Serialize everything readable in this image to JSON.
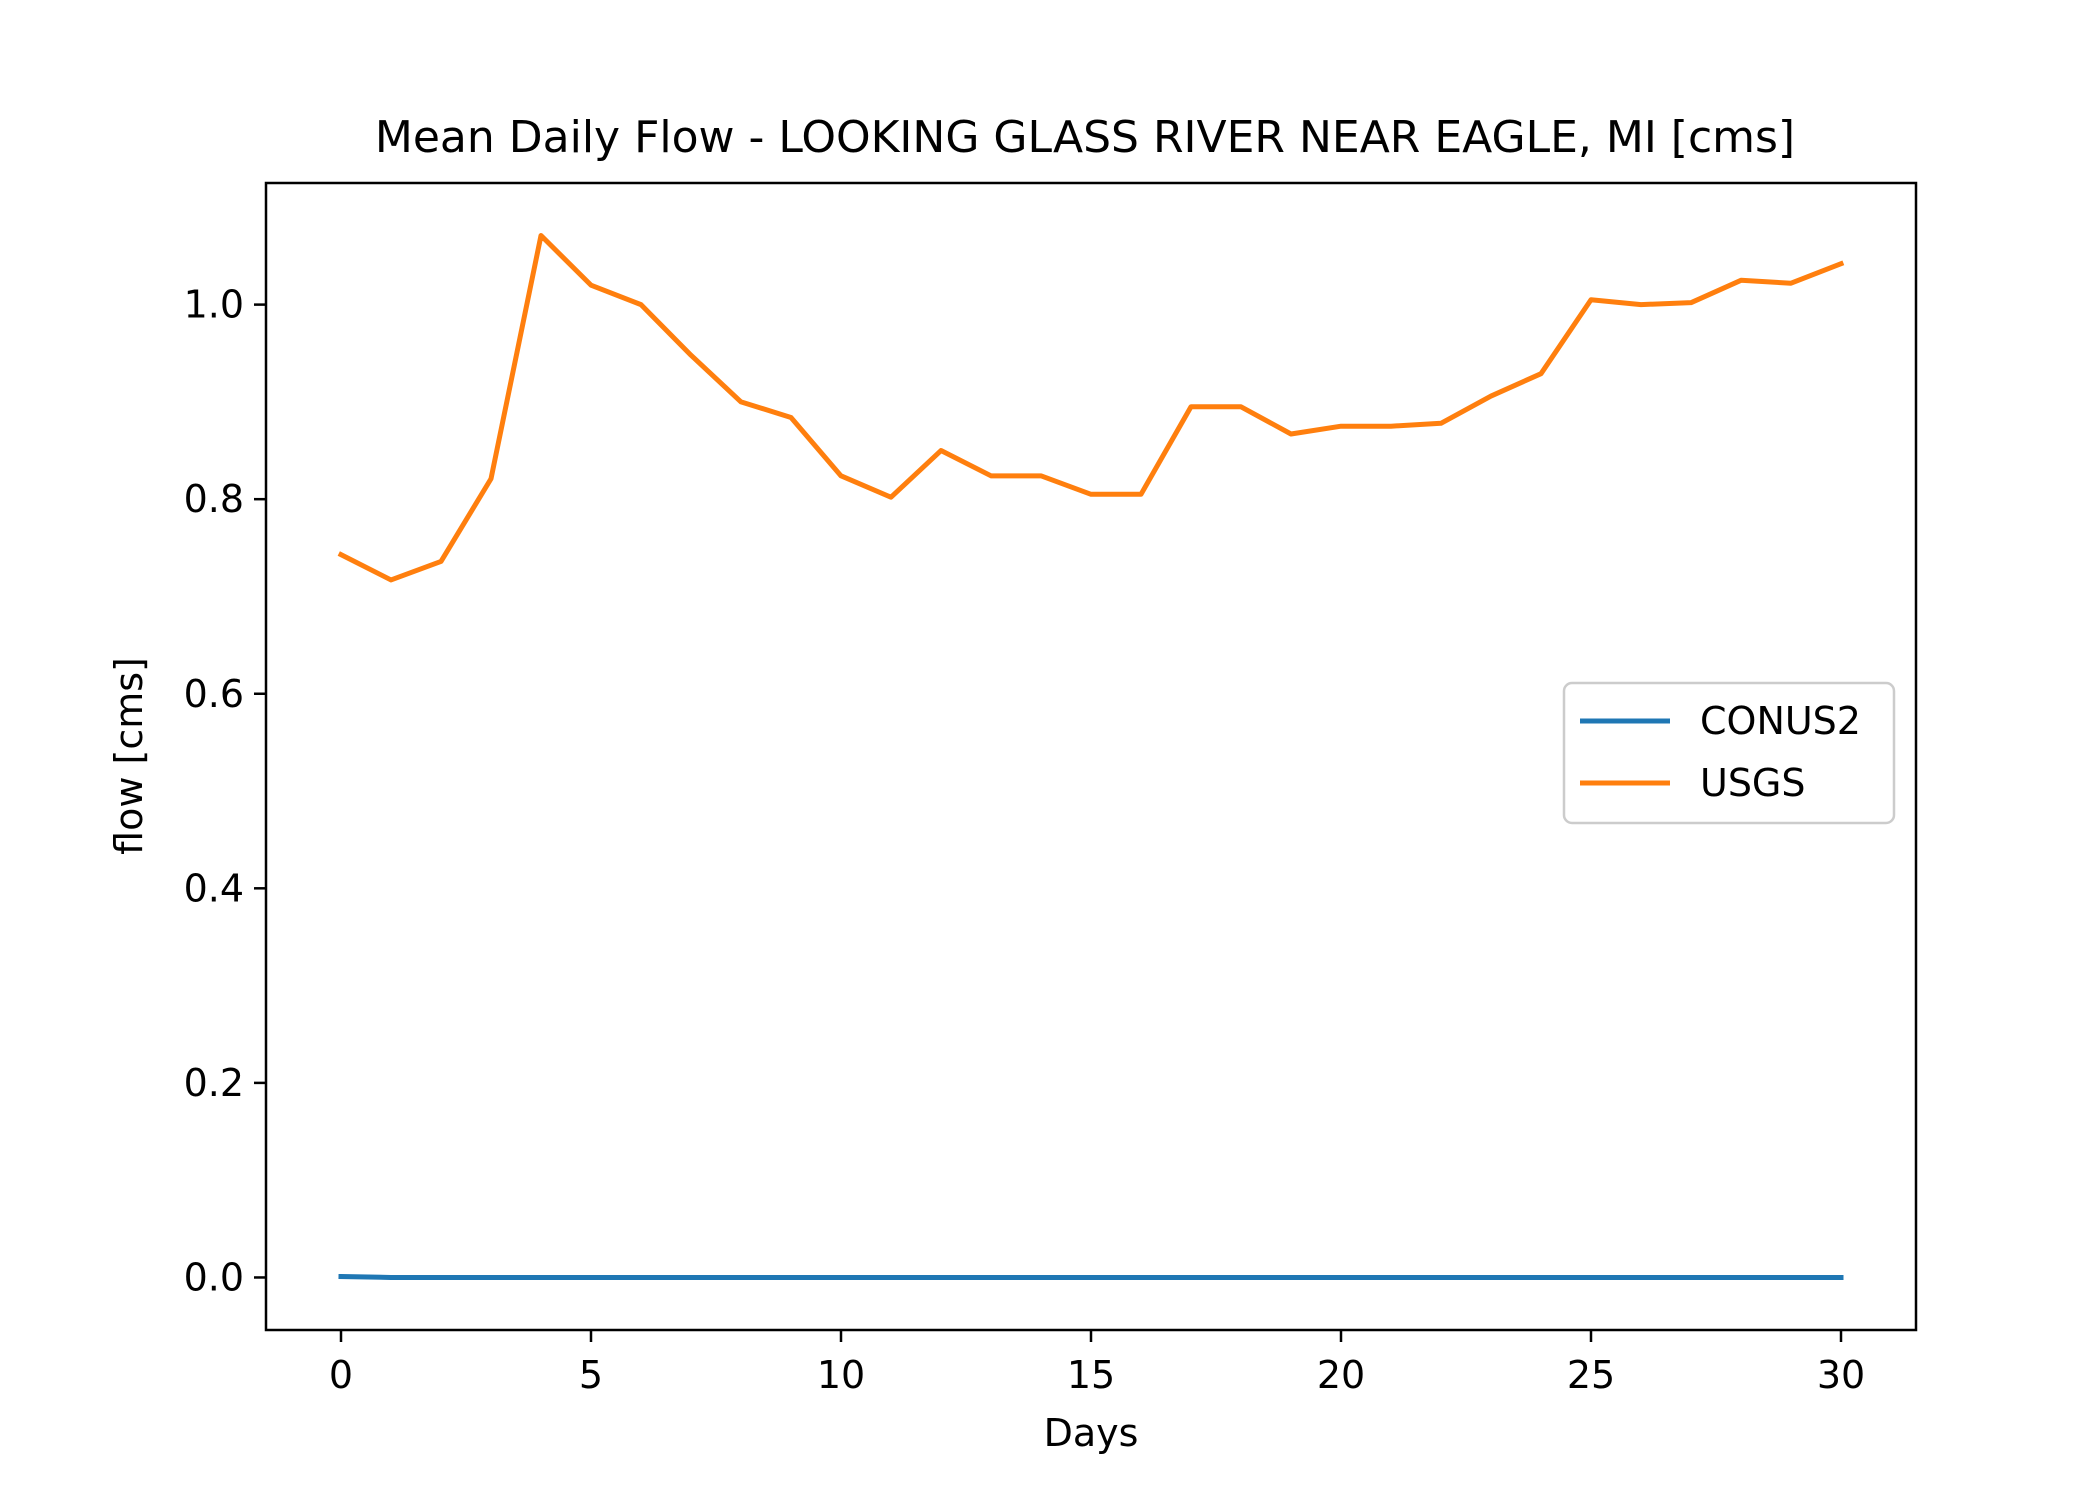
{
  "chart_data": {
    "type": "line",
    "title": "Mean Daily Flow - LOOKING GLASS RIVER NEAR EAGLE, MI [cms]",
    "xlabel": "Days",
    "ylabel": "flow [cms]",
    "xlim": [
      -1.5,
      31.5
    ],
    "ylim": [
      -0.054,
      1.125
    ],
    "xticks": [
      0,
      5,
      10,
      15,
      20,
      25,
      30
    ],
    "xtick_labels": [
      "0",
      "5",
      "10",
      "15",
      "20",
      "25",
      "30"
    ],
    "yticks": [
      0.0,
      0.2,
      0.4,
      0.6,
      0.8,
      1.0
    ],
    "ytick_labels": [
      "0.0",
      "0.2",
      "0.4",
      "0.6",
      "0.8",
      "1.0"
    ],
    "grid": false,
    "legend_position": "center-right",
    "x": [
      0,
      1,
      2,
      3,
      4,
      5,
      6,
      7,
      8,
      9,
      10,
      11,
      12,
      13,
      14,
      15,
      16,
      17,
      18,
      19,
      20,
      21,
      22,
      23,
      24,
      25,
      26,
      27,
      28,
      29,
      30
    ],
    "series": [
      {
        "name": "CONUS2",
        "color": "#1f77b4",
        "values": [
          0.001,
          0.0,
          0.0,
          0.0,
          0.0,
          0.0,
          0.0,
          0.0,
          0.0,
          0.0,
          0.0,
          0.0,
          0.0,
          0.0,
          0.0,
          0.0,
          0.0,
          0.0,
          0.0,
          0.0,
          0.0,
          0.0,
          0.0,
          0.0,
          0.0,
          0.0,
          0.0,
          0.0,
          0.0,
          0.0,
          0.0
        ]
      },
      {
        "name": "USGS",
        "color": "#ff7f0e",
        "values": [
          0.743,
          0.717,
          0.736,
          0.821,
          1.071,
          1.02,
          1.0,
          0.948,
          0.9,
          0.884,
          0.824,
          0.802,
          0.85,
          0.824,
          0.824,
          0.805,
          0.805,
          0.895,
          0.895,
          0.867,
          0.875,
          0.875,
          0.878,
          0.906,
          0.929,
          1.005,
          1.0,
          1.002,
          1.025,
          1.022,
          1.042
        ]
      }
    ]
  }
}
